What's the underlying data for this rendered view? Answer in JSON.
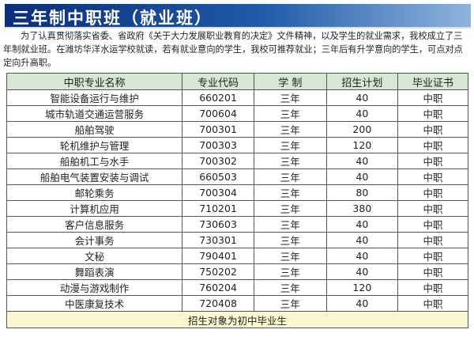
{
  "title": "三年制中职班（就业班）",
  "intro": "为了认真贯彻落实省委、省政府《关于大力发展职业教育的决定》文件精神，以及学生的就业需求，我校成立了三年制就业班。在潍坊华洋水运学校就读，若有就业意向的学生，我校可推荐就业；三年后有升学意向的学生，可点对点定向升高职。",
  "table": {
    "headers": [
      "中职专业名称",
      "专业代码",
      "学 制",
      "招生计划",
      "毕业证书"
    ],
    "rows": [
      [
        "智能设备运行与维护",
        "660201",
        "三年",
        "40",
        "中职"
      ],
      [
        "城市轨道交通运营服务",
        "700604",
        "三年",
        "40",
        "中职"
      ],
      [
        "船舶驾驶",
        "700301",
        "三年",
        "200",
        "中职"
      ],
      [
        "轮机维护与管理",
        "700303",
        "三年",
        "120",
        "中职"
      ],
      [
        "船舶机工与水手",
        "700302",
        "三年",
        "40",
        "中职"
      ],
      [
        "船舶电气装置安装与调试",
        "660503",
        "三年",
        "40",
        "中职"
      ],
      [
        "邮轮乘务",
        "700304",
        "三年",
        "80",
        "中职"
      ],
      [
        "计算机应用",
        "710201",
        "三年",
        "380",
        "中职"
      ],
      [
        "客户信息服务",
        "730603",
        "三年",
        "40",
        "中职"
      ],
      [
        "会计事务",
        "730301",
        "三年",
        "40",
        "中职"
      ],
      [
        "文秘",
        "790401",
        "三年",
        "40",
        "中职"
      ],
      [
        "舞蹈表演",
        "750202",
        "三年",
        "40",
        "中职"
      ],
      [
        "动漫与游戏制作",
        "760204",
        "三年",
        "120",
        "中职"
      ],
      [
        "中医康复技术",
        "720408",
        "三年",
        "40",
        "中职"
      ]
    ],
    "footer": "招生对象为初中毕业生"
  }
}
